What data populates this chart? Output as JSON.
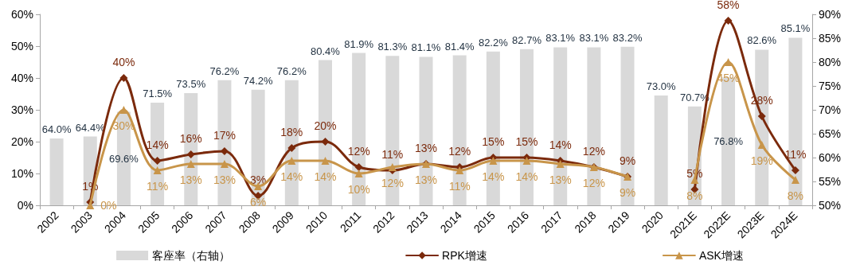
{
  "chart_data": {
    "type": "bar",
    "categories": [
      "2002",
      "2003",
      "2004",
      "2005",
      "2006",
      "2007",
      "2008",
      "2009",
      "2010",
      "2011",
      "2012",
      "2013",
      "2014",
      "2015",
      "2016",
      "2017",
      "2018",
      "2019",
      "2020",
      "2021E",
      "2022E",
      "2023E",
      "2024E"
    ],
    "series": [
      {
        "name": "客座率（右轴）",
        "axis": "y2",
        "color": "#d9d9d9",
        "values": [
          64.0,
          64.4,
          69.6,
          71.5,
          73.5,
          76.2,
          74.2,
          76.2,
          80.4,
          81.9,
          81.3,
          81.1,
          81.4,
          82.2,
          82.7,
          83.1,
          83.1,
          83.2,
          73.0,
          70.7,
          76.8,
          82.6,
          85.1
        ],
        "value_labels": [
          "64.0%",
          "64.4%",
          "69.6%",
          "71.5%",
          "73.5%",
          "76.2%",
          "74.2%",
          "76.2%",
          "80.4%",
          "81.9%",
          "81.3%",
          "81.1%",
          "81.4%",
          "82.2%",
          "82.7%",
          "83.1%",
          "83.1%",
          "83.2%",
          "73.0%",
          "70.7%",
          "76.8%",
          "82.6%",
          "85.1%"
        ]
      },
      {
        "name": "RPK增速",
        "type": "line",
        "color": "#7b2a0c",
        "marker": "diamond",
        "values": [
          null,
          1,
          40,
          14,
          16,
          17,
          3,
          18,
          20,
          12,
          11,
          13,
          12,
          15,
          15,
          14,
          12,
          9,
          null,
          5,
          58,
          28,
          11
        ],
        "value_labels": [
          null,
          "1%",
          "40%",
          "14%",
          "16%",
          "17%",
          "3%",
          "18%",
          "20%",
          "12%",
          "11%",
          "13%",
          "12%",
          "15%",
          "15%",
          "14%",
          "12%",
          "9%",
          null,
          "5%",
          "58%",
          "28%",
          "11%"
        ]
      },
      {
        "name": "ASK增速",
        "type": "line",
        "color": "#c8954a",
        "marker": "triangle",
        "values": [
          null,
          0,
          30,
          11,
          13,
          13,
          6,
          14,
          14,
          10,
          12,
          13,
          11,
          14,
          14,
          13,
          12,
          9,
          null,
          8,
          45,
          19,
          8
        ],
        "value_labels": [
          null,
          "0%",
          "30%",
          "11%",
          "13%",
          "13%",
          "6%",
          "14%",
          "14%",
          "10%",
          "12%",
          "13%",
          "11%",
          "14%",
          "14%",
          "13%",
          "12%",
          "9%",
          null,
          "8%",
          "45%",
          "19%",
          "8%"
        ]
      }
    ],
    "ylim": [
      0,
      60
    ],
    "yticks": [
      {
        "value": 0,
        "label": "0%"
      },
      {
        "value": 10,
        "label": "10%"
      },
      {
        "value": 20,
        "label": "20%"
      },
      {
        "value": 30,
        "label": "30%"
      },
      {
        "value": 40,
        "label": "40%"
      },
      {
        "value": 50,
        "label": "50%"
      },
      {
        "value": 60,
        "label": "60%"
      }
    ],
    "y2lim": [
      50,
      90
    ],
    "y2ticks": [
      {
        "value": 50,
        "label": "50%"
      },
      {
        "value": 55,
        "label": "55%"
      },
      {
        "value": 60,
        "label": "60%"
      },
      {
        "value": 65,
        "label": "65%"
      },
      {
        "value": 70,
        "label": "70%"
      },
      {
        "value": 75,
        "label": "75%"
      },
      {
        "value": 80,
        "label": "80%"
      },
      {
        "value": 85,
        "label": "85%"
      },
      {
        "value": 90,
        "label": "90%"
      }
    ],
    "grid": false,
    "legend": "bottom",
    "line_style": "solid"
  }
}
